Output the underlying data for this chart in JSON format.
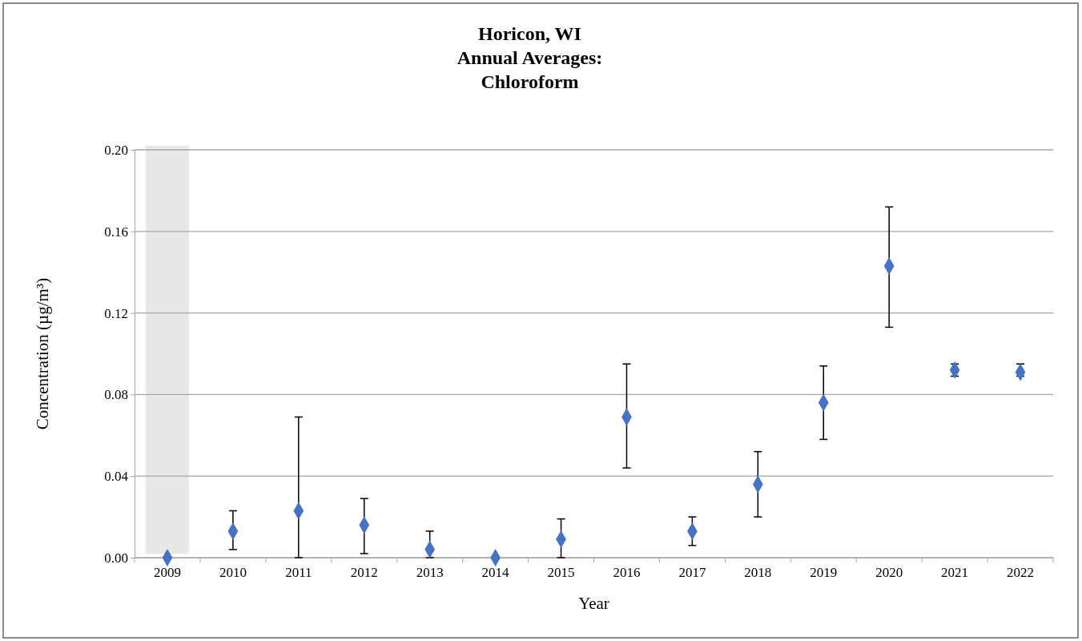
{
  "chart_data": {
    "type": "scatter",
    "title": "Horicon, WI\nAnnual Averages:\nChloroform",
    "xlabel": "Year",
    "ylabel": "Concentration (µg/m³)",
    "categories": [
      "2009",
      "2010",
      "2011",
      "2012",
      "2013",
      "2014",
      "2015",
      "2016",
      "2017",
      "2018",
      "2019",
      "2020",
      "2021",
      "2022"
    ],
    "series": [
      {
        "color": "#4472c4",
        "values": [
          0,
          0.013,
          0.023,
          0.016,
          0.004,
          0,
          0.009,
          0.069,
          0.013,
          0.036,
          0.076,
          0.143,
          0.092,
          0.091
        ],
        "errors": [
          null,
          [
            0.004,
            0.023
          ],
          [
            0,
            0.069
          ],
          [
            0.002,
            0.029
          ],
          [
            0,
            0.013
          ],
          null,
          [
            0,
            0.019
          ],
          [
            0.044,
            0.095
          ],
          [
            0.006,
            0.02
          ],
          [
            0.02,
            0.052
          ],
          [
            0.058,
            0.094
          ],
          [
            0.113,
            0.172
          ],
          [
            0.089,
            0.095
          ],
          [
            0.089,
            0.095
          ]
        ]
      }
    ],
    "ylim": [
      0,
      0.2
    ],
    "yticks": [
      {
        "value": 0,
        "label": "0.00"
      },
      {
        "value": 0.04,
        "label": "0.04"
      },
      {
        "value": 0.08,
        "label": "0.08"
      },
      {
        "value": 0.12,
        "label": "0.12"
      },
      {
        "value": 0.16,
        "label": "0.16"
      },
      {
        "value": 0.2,
        "label": "0.20"
      }
    ],
    "grid": "y",
    "marker": "diamond",
    "bands": [
      {
        "axis": "x",
        "from": "2009",
        "to": "2009",
        "color": "#e8e8e8"
      }
    ]
  }
}
